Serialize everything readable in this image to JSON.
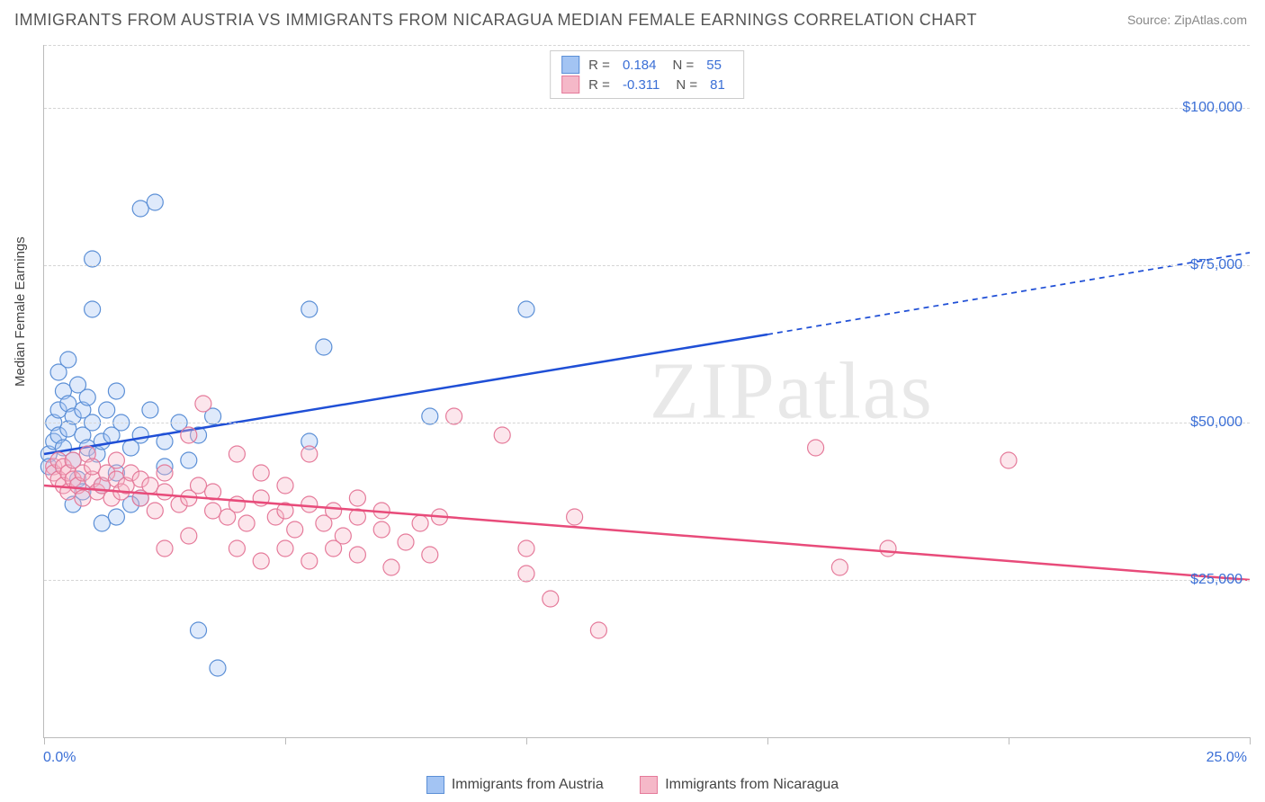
{
  "title": "IMMIGRANTS FROM AUSTRIA VS IMMIGRANTS FROM NICARAGUA MEDIAN FEMALE EARNINGS CORRELATION CHART",
  "source_label": "Source: ZipAtlas.com",
  "watermark": "ZIPatlas",
  "y_axis_label": "Median Female Earnings",
  "chart": {
    "type": "scatter-with-regression",
    "background_color": "#ffffff",
    "grid_color": "#d5d5d5",
    "axis_color": "#bbbbbb",
    "text_color": "#444444",
    "tick_label_color": "#3b6fd6",
    "x_min": 0.0,
    "x_max": 25.0,
    "y_min": 0,
    "y_max": 110000,
    "x_ticks": [
      0,
      5,
      10,
      15,
      20,
      25
    ],
    "x_tick_labels": {
      "0": "0.0%",
      "25": "25.0%"
    },
    "y_gridlines": [
      25000,
      50000,
      75000,
      100000,
      110000
    ],
    "y_tick_labels": {
      "25000": "$25,000",
      "50000": "$50,000",
      "75000": "$75,000",
      "100000": "$100,000"
    },
    "marker_radius": 9,
    "marker_fill_opacity": 0.35,
    "marker_stroke_width": 1.2,
    "line_width": 2.5
  },
  "series": [
    {
      "name": "Immigrants from Austria",
      "color_fill": "#a3c4f3",
      "color_stroke": "#5b8fd6",
      "line_color": "#1f4fd6",
      "r_value": "0.184",
      "n_value": "55",
      "regression": {
        "x1": 0,
        "y1": 45000,
        "x2_solid": 15,
        "y2_solid": 64000,
        "x2_dash": 25,
        "y2_dash": 77000
      },
      "points": [
        [
          0.1,
          45000
        ],
        [
          0.1,
          43000
        ],
        [
          0.2,
          47000
        ],
        [
          0.2,
          50000
        ],
        [
          0.3,
          52000
        ],
        [
          0.3,
          48000
        ],
        [
          0.3,
          58000
        ],
        [
          0.4,
          55000
        ],
        [
          0.4,
          46000
        ],
        [
          0.5,
          53000
        ],
        [
          0.5,
          49000
        ],
        [
          0.5,
          60000
        ],
        [
          0.6,
          51000
        ],
        [
          0.6,
          44000
        ],
        [
          0.7,
          41000
        ],
        [
          0.7,
          56000
        ],
        [
          0.8,
          48000
        ],
        [
          0.8,
          52000
        ],
        [
          0.9,
          46000
        ],
        [
          0.9,
          54000
        ],
        [
          1.0,
          50000
        ],
        [
          1.0,
          68000
        ],
        [
          1.1,
          45000
        ],
        [
          1.2,
          47000
        ],
        [
          1.2,
          40000
        ],
        [
          1.3,
          52000
        ],
        [
          1.4,
          48000
        ],
        [
          1.5,
          55000
        ],
        [
          1.5,
          42000
        ],
        [
          1.6,
          50000
        ],
        [
          1.8,
          46000
        ],
        [
          2.0,
          48000
        ],
        [
          2.0,
          38000
        ],
        [
          2.2,
          52000
        ],
        [
          2.5,
          47000
        ],
        [
          2.8,
          50000
        ],
        [
          3.0,
          44000
        ],
        [
          3.2,
          48000
        ],
        [
          3.5,
          51000
        ],
        [
          1.0,
          76000
        ],
        [
          2.0,
          84000
        ],
        [
          2.3,
          85000
        ],
        [
          5.5,
          68000
        ],
        [
          5.8,
          62000
        ],
        [
          5.5,
          47000
        ],
        [
          10.0,
          68000
        ],
        [
          8.0,
          51000
        ],
        [
          1.2,
          34000
        ],
        [
          1.5,
          35000
        ],
        [
          3.2,
          17000
        ],
        [
          3.6,
          11000
        ],
        [
          0.6,
          37000
        ],
        [
          0.8,
          39000
        ],
        [
          1.8,
          37000
        ],
        [
          2.5,
          43000
        ]
      ]
    },
    {
      "name": "Immigrants from Nicaragua",
      "color_fill": "#f5b8c8",
      "color_stroke": "#e57a9a",
      "line_color": "#e84b7a",
      "r_value": "-0.311",
      "n_value": "81",
      "regression": {
        "x1": 0,
        "y1": 40000,
        "x2_solid": 25,
        "y2_solid": 25000,
        "x2_dash": 25,
        "y2_dash": 25000
      },
      "points": [
        [
          0.2,
          43000
        ],
        [
          0.2,
          42000
        ],
        [
          0.3,
          44000
        ],
        [
          0.3,
          41000
        ],
        [
          0.4,
          40000
        ],
        [
          0.4,
          43000
        ],
        [
          0.5,
          42000
        ],
        [
          0.5,
          39000
        ],
        [
          0.6,
          41000
        ],
        [
          0.6,
          44000
        ],
        [
          0.7,
          40000
        ],
        [
          0.8,
          42000
        ],
        [
          0.8,
          38000
        ],
        [
          0.9,
          45000
        ],
        [
          1.0,
          41000
        ],
        [
          1.0,
          43000
        ],
        [
          1.1,
          39000
        ],
        [
          1.2,
          40000
        ],
        [
          1.3,
          42000
        ],
        [
          1.4,
          38000
        ],
        [
          1.5,
          41000
        ],
        [
          1.5,
          44000
        ],
        [
          1.6,
          39000
        ],
        [
          1.7,
          40000
        ],
        [
          1.8,
          42000
        ],
        [
          2.0,
          38000
        ],
        [
          2.0,
          41000
        ],
        [
          2.2,
          40000
        ],
        [
          2.3,
          36000
        ],
        [
          2.5,
          39000
        ],
        [
          2.5,
          42000
        ],
        [
          2.8,
          37000
        ],
        [
          3.0,
          38000
        ],
        [
          3.0,
          48000
        ],
        [
          3.2,
          40000
        ],
        [
          3.5,
          36000
        ],
        [
          3.5,
          39000
        ],
        [
          3.8,
          35000
        ],
        [
          4.0,
          37000
        ],
        [
          4.0,
          45000
        ],
        [
          4.2,
          34000
        ],
        [
          4.5,
          38000
        ],
        [
          4.5,
          42000
        ],
        [
          4.8,
          35000
        ],
        [
          5.0,
          36000
        ],
        [
          5.0,
          40000
        ],
        [
          5.2,
          33000
        ],
        [
          5.5,
          37000
        ],
        [
          5.5,
          45000
        ],
        [
          5.8,
          34000
        ],
        [
          6.0,
          36000
        ],
        [
          6.2,
          32000
        ],
        [
          6.5,
          35000
        ],
        [
          6.5,
          38000
        ],
        [
          7.0,
          33000
        ],
        [
          7.0,
          36000
        ],
        [
          7.5,
          31000
        ],
        [
          7.8,
          34000
        ],
        [
          8.0,
          29000
        ],
        [
          8.2,
          35000
        ],
        [
          8.5,
          51000
        ],
        [
          9.5,
          48000
        ],
        [
          10.0,
          30000
        ],
        [
          10.0,
          26000
        ],
        [
          10.5,
          22000
        ],
        [
          11.0,
          35000
        ],
        [
          11.5,
          17000
        ],
        [
          3.3,
          53000
        ],
        [
          6.5,
          29000
        ],
        [
          7.2,
          27000
        ],
        [
          16.0,
          46000
        ],
        [
          16.5,
          27000
        ],
        [
          17.5,
          30000
        ],
        [
          20.0,
          44000
        ],
        [
          2.5,
          30000
        ],
        [
          3.0,
          32000
        ],
        [
          4.0,
          30000
        ],
        [
          4.5,
          28000
        ],
        [
          5.0,
          30000
        ],
        [
          5.5,
          28000
        ],
        [
          6.0,
          30000
        ]
      ]
    }
  ],
  "legend_top_labels": {
    "r": "R  =",
    "n": "N  ="
  },
  "legend_bottom": [
    {
      "label": "Immigrants from Austria",
      "series": 0
    },
    {
      "label": "Immigrants from Nicaragua",
      "series": 1
    }
  ]
}
